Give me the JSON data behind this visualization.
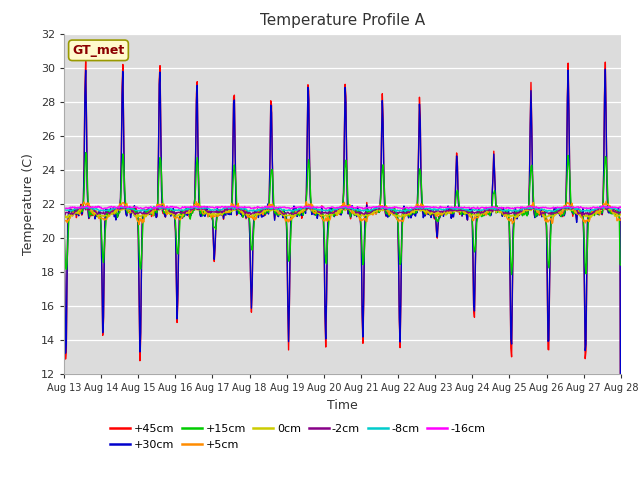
{
  "title": "Temperature Profile A",
  "xlabel": "Time",
  "ylabel": "Temperature (C)",
  "ylim": [
    12,
    32
  ],
  "xlim_days": [
    13,
    28
  ],
  "annotation_text": "GT_met",
  "annotation_color": "#8B0000",
  "annotation_bg": "#FFFACD",
  "background_color": "#DCDCDC",
  "series": {
    "+45cm": {
      "color": "#FF0000",
      "lw": 1.0
    },
    "+30cm": {
      "color": "#0000CC",
      "lw": 1.0
    },
    "+15cm": {
      "color": "#00CC00",
      "lw": 1.0
    },
    "+5cm": {
      "color": "#FF8C00",
      "lw": 1.0
    },
    "0cm": {
      "color": "#CCCC00",
      "lw": 1.0
    },
    "-2cm": {
      "color": "#880088",
      "lw": 1.0
    },
    "-8cm": {
      "color": "#00CCCC",
      "lw": 1.0
    },
    "-16cm": {
      "color": "#FF00FF",
      "lw": 1.0
    }
  },
  "xtick_labels": [
    "Aug 13",
    "Aug 14",
    "Aug 15",
    "Aug 16",
    "Aug 17",
    "Aug 18",
    "Aug 19",
    "Aug 20",
    "Aug 21",
    "Aug 22",
    "Aug 23",
    "Aug 24",
    "Aug 25",
    "Aug 26",
    "Aug 27",
    "Aug 28"
  ],
  "ytick_labels": [
    12,
    14,
    16,
    18,
    20,
    22,
    24,
    26,
    28,
    30,
    32
  ],
  "legend_ncol1": 6,
  "legend_ncol2": 2
}
